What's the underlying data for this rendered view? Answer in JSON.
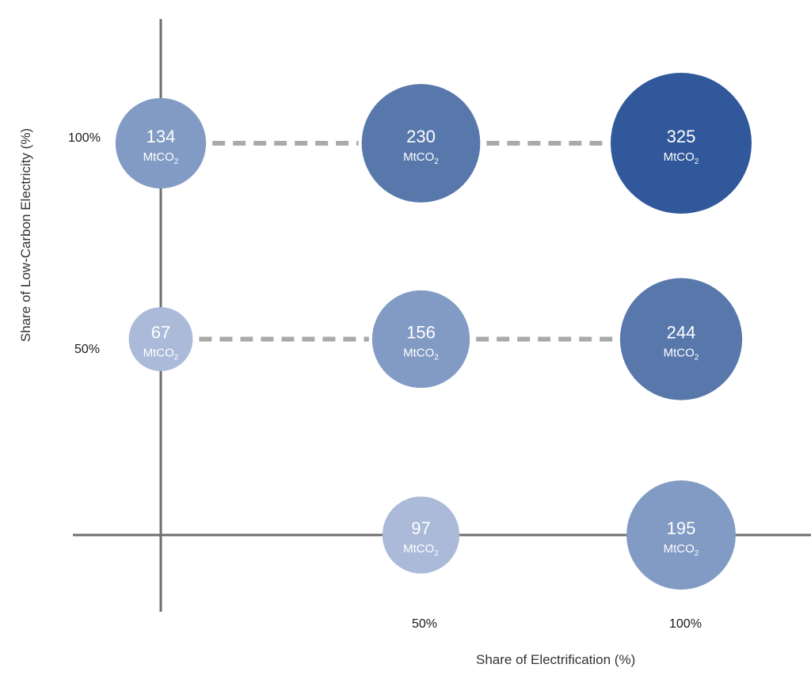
{
  "chart_data": {
    "type": "scatter",
    "xlabel": "Share of Electrification (%)",
    "ylabel": "Share of Low-Carbon Electricity (%)",
    "x_ticks": [
      "50%",
      "100%"
    ],
    "y_ticks": [
      "100%",
      "50%"
    ],
    "unit_text": "MtCO",
    "unit_subscript": "2",
    "colors": {
      "low": "#aabad8",
      "mid": "#829bc4",
      "high": "#5878ac",
      "max": "#30589a",
      "axis": "#6d6d6d",
      "dash": "#aaaaaa"
    },
    "points": [
      {
        "x": 0,
        "y": 100,
        "value": 134,
        "color": "mid"
      },
      {
        "x": 50,
        "y": 100,
        "value": 230,
        "color": "high"
      },
      {
        "x": 100,
        "y": 100,
        "value": 325,
        "color": "max"
      },
      {
        "x": 0,
        "y": 50,
        "value": 67,
        "color": "low"
      },
      {
        "x": 50,
        "y": 50,
        "value": 156,
        "color": "mid"
      },
      {
        "x": 100,
        "y": 50,
        "value": 244,
        "color": "high"
      },
      {
        "x": 50,
        "y": 0,
        "value": 97,
        "color": "low"
      },
      {
        "x": 100,
        "y": 0,
        "value": 195,
        "color": "mid"
      }
    ]
  }
}
